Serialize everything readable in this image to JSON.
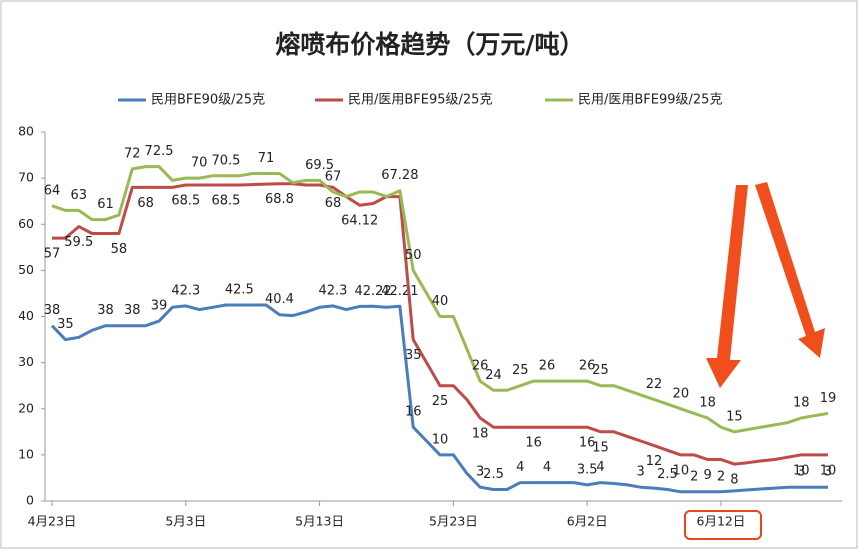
{
  "chart_data": {
    "type": "line",
    "title": "熔喷布价格趋势（万元/吨）",
    "categories": [
      "4月23日",
      null,
      null,
      null,
      null,
      null,
      null,
      null,
      null,
      null,
      "5月3日",
      null,
      null,
      null,
      null,
      null,
      null,
      null,
      null,
      null,
      "5月13日",
      null,
      null,
      null,
      null,
      null,
      null,
      null,
      null,
      null,
      "5月23日",
      null,
      null,
      null,
      null,
      null,
      null,
      null,
      null,
      null,
      "6月2日",
      null,
      null,
      null,
      null,
      null,
      null,
      null,
      null,
      null,
      "6月12日",
      null,
      null,
      null,
      null,
      null,
      null,
      null,
      null
    ],
    "ylim": [
      0,
      80
    ],
    "yticks": [
      0,
      10,
      20,
      30,
      40,
      50,
      60,
      70,
      80
    ],
    "legend": "top",
    "series": [
      {
        "name": "民用BFE90级/25克",
        "color": "#4a7ebb",
        "values": [
          38,
          35,
          35.5,
          37,
          38,
          38,
          38,
          38,
          39,
          42,
          42.3,
          41.5,
          42,
          42.5,
          42.5,
          42.5,
          42.5,
          40.4,
          40.2,
          41,
          42,
          42.3,
          41.5,
          42.2,
          42.22,
          42,
          42.21,
          16,
          13,
          10,
          10,
          6,
          3,
          2.5,
          2.5,
          4,
          4,
          4,
          4,
          4,
          3.5,
          4,
          3.8,
          3.5,
          3,
          2.8,
          2.5,
          2,
          2,
          2,
          2,
          2.2,
          2.4,
          2.6,
          2.8,
          3,
          3,
          3,
          3
        ],
        "value_labels": [
          "38",
          "35",
          null,
          null,
          "38",
          null,
          "38",
          null,
          "39",
          null,
          "42.3",
          null,
          null,
          null,
          "42.5",
          null,
          null,
          "40.4",
          null,
          null,
          null,
          "42.3",
          null,
          null,
          "42.22",
          null,
          "42.21",
          "16",
          null,
          "10",
          null,
          null,
          "3",
          "2.5",
          null,
          "4",
          null,
          "4",
          null,
          null,
          "3.5",
          "4",
          null,
          null,
          "3",
          null,
          "2.5",
          null,
          "2",
          null,
          "2",
          null,
          null,
          null,
          null,
          null,
          "3",
          null,
          "3"
        ]
      },
      {
        "name": "民用/医用BFE95级/25克",
        "color": "#be4b48",
        "values": [
          57,
          57,
          59.5,
          58,
          58,
          58,
          68,
          68,
          68,
          68,
          68.5,
          68.5,
          68.5,
          68.5,
          68.5,
          68.6,
          68.7,
          68.8,
          68.8,
          68.5,
          68.5,
          68,
          66,
          64.12,
          64.5,
          66,
          66,
          35,
          30,
          25,
          25,
          22,
          18,
          16,
          16,
          16,
          16,
          16,
          16,
          16,
          16,
          15,
          15,
          14,
          13,
          12,
          11,
          10,
          10,
          9,
          9,
          8,
          8.3,
          8.7,
          9,
          9.5,
          10,
          10,
          10
        ],
        "value_labels": [
          "57",
          null,
          "59.5",
          null,
          null,
          "58",
          null,
          "68",
          null,
          null,
          "68.5",
          null,
          null,
          "68.5",
          null,
          null,
          null,
          "68.8",
          null,
          null,
          null,
          "68",
          null,
          "64.12",
          null,
          null,
          null,
          "35",
          null,
          "25",
          null,
          null,
          "18",
          null,
          null,
          null,
          "16",
          null,
          null,
          null,
          "16",
          "15",
          null,
          null,
          null,
          "12",
          null,
          "10",
          null,
          "9",
          null,
          "8",
          null,
          null,
          null,
          null,
          "10",
          null,
          "10"
        ]
      },
      {
        "name": "民用/医用BFE99级/25克",
        "color": "#98b954",
        "values": [
          64,
          63,
          63,
          61,
          61,
          62,
          72,
          72.5,
          72.5,
          69.5,
          70,
          70,
          70.5,
          70.5,
          70.5,
          71,
          71,
          71,
          69,
          69.5,
          69.5,
          67,
          66,
          67,
          67,
          66,
          67.28,
          50,
          45,
          40,
          40,
          33,
          26,
          24,
          24,
          25,
          26,
          26,
          26,
          26,
          26,
          25,
          25,
          24,
          23,
          22,
          21,
          20,
          19,
          18,
          16,
          15,
          15.5,
          16,
          16.5,
          17,
          18,
          18.5,
          19
        ],
        "value_labels": [
          "64",
          null,
          "63",
          null,
          "61",
          null,
          "72",
          null,
          "72.5",
          null,
          null,
          "70",
          null,
          "70.5",
          null,
          null,
          "71",
          null,
          null,
          null,
          "69.5",
          "67",
          null,
          null,
          null,
          null,
          "67.28",
          "50",
          null,
          "40",
          null,
          null,
          "26",
          "24",
          null,
          "25",
          null,
          "26",
          null,
          null,
          "26",
          "25",
          null,
          null,
          null,
          "22",
          null,
          "20",
          null,
          "18",
          null,
          "15",
          null,
          null,
          null,
          null,
          "18",
          null,
          "19"
        ]
      }
    ]
  }
}
